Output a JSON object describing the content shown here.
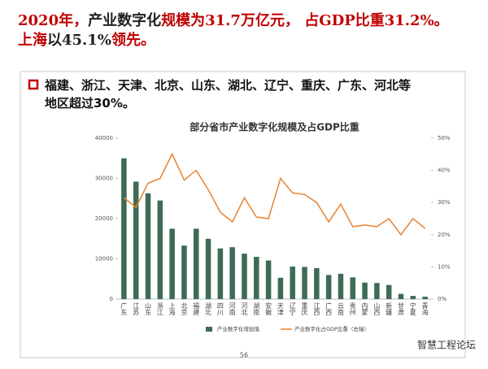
{
  "headline": [
    [
      {
        "text": "2020年，",
        "color": "#c00000"
      },
      {
        "text": "产业数字化",
        "color": "#222222"
      },
      {
        "text": "规模为31.7万亿元，",
        "color": "#c00000"
      },
      {
        "text": " 占GDP比重31.2%。",
        "color": "#c00000"
      }
    ],
    [
      {
        "text": "上海",
        "color": "#c00000"
      },
      {
        "text": "以45.1%",
        "color": "#222222"
      },
      {
        "text": "领先。",
        "color": "#c00000"
      }
    ]
  ],
  "bullet": "福建、浙江、天津、北京、山东、湖北、辽宁、重庆、广东、河北等地区超过30%。",
  "page_number": "56",
  "watermark": "智慧工程论坛",
  "chart_data": {
    "type": "bar_line",
    "title": "部分省市产业数字化规模及占GDP比重",
    "categories": [
      "广东",
      "江苏",
      "山东",
      "浙江",
      "上海",
      "北京",
      "福建",
      "湖北",
      "四川",
      "河南",
      "河北",
      "湖南",
      "安徽",
      "天津",
      "辽宁",
      "重庆",
      "江西",
      "广西",
      "云南",
      "贵州",
      "内蒙",
      "山西",
      "新疆",
      "甘肃",
      "宁夏",
      "青海"
    ],
    "series": [
      {
        "name": "产业数字化增加值",
        "color": "#3f6b55",
        "values": [
          35000,
          29200,
          26300,
          24500,
          17500,
          13300,
          17500,
          15000,
          12600,
          12900,
          11300,
          10500,
          9600,
          5300,
          8100,
          8000,
          7700,
          6000,
          6300,
          5400,
          4100,
          4000,
          3500,
          1300,
          800,
          600
        ]
      },
      {
        "name": "产业数字化占GDP比重（右轴）",
        "color": "#e8822e",
        "axis": "y2",
        "values": [
          31.5,
          28.5,
          36,
          37.5,
          45.1,
          37,
          40,
          34,
          27,
          24,
          31.5,
          25.5,
          25,
          37.5,
          33,
          32.5,
          30,
          24,
          29.5,
          22.5,
          23,
          22.5,
          25,
          20,
          25,
          22
        ]
      }
    ],
    "ylim": [
      0,
      40000
    ],
    "yticks": [
      0,
      10000,
      20000,
      30000,
      40000
    ],
    "y2lim": [
      0,
      50
    ],
    "y2ticks": [
      {
        "value": 0,
        "label": "0%"
      },
      {
        "value": 10,
        "label": "10%"
      },
      {
        "value": 20,
        "label": "20%"
      },
      {
        "value": 30,
        "label": "30%"
      },
      {
        "value": 40,
        "label": "40%"
      },
      {
        "value": 50,
        "label": "50%"
      }
    ],
    "grid": false
  }
}
